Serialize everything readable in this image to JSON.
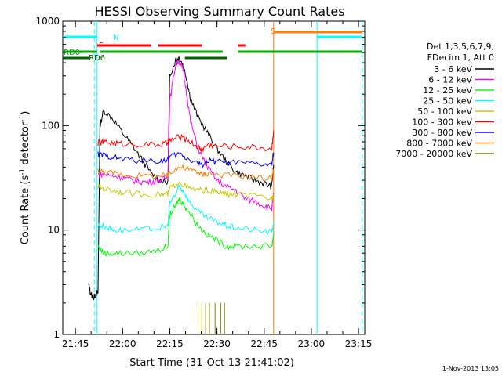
{
  "chart_data": {
    "type": "line",
    "title": "HESSI Observing Summary Count Rates",
    "xlabel": "Start Time (31-Oct-13 21:41:02)",
    "ylabel_main": "Count Rate (s",
    "ylabel_sup1": "-1",
    "ylabel_mid": " detector",
    "ylabel_sup2": "-1",
    "ylabel_end": ")",
    "yscale": "log",
    "ylim": [
      1,
      1000
    ],
    "xlim": [
      21.683,
      23.283
    ],
    "xticks": [
      {
        "value": 21.75,
        "label": "21:45"
      },
      {
        "value": 22.0,
        "label": "22:00"
      },
      {
        "value": 22.25,
        "label": "22:15"
      },
      {
        "value": 22.5,
        "label": "22:30"
      },
      {
        "value": 22.75,
        "label": "22:45"
      },
      {
        "value": 23.0,
        "label": "23:00"
      },
      {
        "value": 23.25,
        "label": "23:15"
      }
    ],
    "yticks": [
      {
        "value": 1,
        "label": "1"
      },
      {
        "value": 10,
        "label": "10"
      },
      {
        "value": 100,
        "label": "100"
      },
      {
        "value": 1000,
        "label": "1000"
      }
    ],
    "legend_header": [
      "Det 1,3,5,6,7,9,",
      "FDecim 1, Att 0"
    ],
    "legend_position": "right",
    "series": [
      {
        "name": "3 - 6 keV",
        "color": "#000000",
        "x": [
          21.82,
          21.83,
          21.845,
          21.86,
          21.87,
          21.88,
          21.9,
          21.95,
          22.0,
          22.05,
          22.1,
          22.15,
          22.2,
          22.24,
          22.25,
          22.28,
          22.3,
          22.32,
          22.34,
          22.36,
          22.4,
          22.45,
          22.5,
          22.55,
          22.6,
          22.65,
          22.7,
          22.75,
          22.79,
          22.8
        ],
        "y": [
          3,
          2.5,
          2.2,
          2.5,
          2.5,
          100,
          140,
          115,
          85,
          65,
          48,
          35,
          30,
          28,
          300,
          420,
          450,
          380,
          280,
          180,
          120,
          85,
          60,
          45,
          36,
          33,
          30,
          28,
          26,
          42
        ]
      },
      {
        "name": "6 - 12 keV",
        "color": "#ff00ff",
        "x": [
          21.87,
          21.9,
          21.95,
          22.0,
          22.05,
          22.1,
          22.15,
          22.2,
          22.24,
          22.25,
          22.28,
          22.3,
          22.32,
          22.34,
          22.36,
          22.4,
          22.45,
          22.5,
          22.55,
          22.6,
          22.65,
          22.7,
          22.75,
          22.79,
          22.8
        ],
        "y": [
          34,
          34,
          33,
          32,
          30,
          29,
          29,
          30,
          32,
          170,
          380,
          420,
          340,
          200,
          110,
          60,
          40,
          30,
          26,
          24,
          20,
          19,
          17,
          16,
          22
        ]
      },
      {
        "name": "12 - 25 keV",
        "color": "#00ff00",
        "x": [
          21.87,
          21.9,
          21.95,
          22.0,
          22.1,
          22.2,
          22.24,
          22.25,
          22.28,
          22.3,
          22.32,
          22.35,
          22.4,
          22.45,
          22.5,
          22.55,
          22.6,
          22.7,
          22.79,
          22.8
        ],
        "y": [
          7,
          6,
          6,
          6,
          6,
          6.5,
          7,
          14,
          17,
          20,
          18,
          15,
          11,
          9,
          8,
          7,
          7,
          7,
          7,
          9
        ]
      },
      {
        "name": "25 - 50 keV",
        "color": "#00ffff",
        "x": [
          21.87,
          21.9,
          21.95,
          22.0,
          22.1,
          22.2,
          22.24,
          22.25,
          22.28,
          22.3,
          22.32,
          22.35,
          22.4,
          22.45,
          22.5,
          22.55,
          22.6,
          22.7,
          22.79,
          22.8
        ],
        "y": [
          11,
          11,
          10,
          10,
          10,
          10.5,
          11,
          18,
          22,
          26,
          24,
          19,
          15,
          13,
          12,
          11,
          10.5,
          10,
          9.5,
          12
        ]
      },
      {
        "name": "50 - 100 keV",
        "color": "#c8c800",
        "x": [
          21.87,
          21.9,
          21.95,
          22.0,
          22.1,
          22.2,
          22.24,
          22.25,
          22.3,
          22.35,
          22.4,
          22.45,
          22.5,
          22.55,
          22.6,
          22.7,
          22.79,
          22.8
        ],
        "y": [
          26,
          25,
          24,
          23,
          22,
          22,
          22,
          25,
          29,
          25,
          24,
          24,
          23,
          22,
          22,
          21,
          20,
          22
        ]
      },
      {
        "name": "100 - 300 keV",
        "color": "#ff0000",
        "x": [
          21.87,
          21.9,
          21.95,
          22.0,
          22.1,
          22.2,
          22.24,
          22.25,
          22.3,
          22.35,
          22.4,
          22.42,
          22.45,
          22.5,
          22.6,
          22.7,
          22.79,
          22.8
        ],
        "y": [
          68,
          70,
          68,
          67,
          66,
          66,
          68,
          72,
          78,
          72,
          62,
          58,
          66,
          64,
          63,
          62,
          60,
          90
        ]
      },
      {
        "name": "300 - 800 keV",
        "color": "#0000ff",
        "x": [
          21.87,
          21.9,
          21.95,
          22.0,
          22.1,
          22.2,
          22.24,
          22.25,
          22.3,
          22.35,
          22.4,
          22.42,
          22.45,
          22.5,
          22.6,
          22.7,
          22.79,
          22.8
        ],
        "y": [
          53,
          52,
          50,
          48,
          46,
          46,
          47,
          50,
          54,
          48,
          44,
          42,
          46,
          45,
          44,
          43,
          42,
          55
        ]
      },
      {
        "name": "800 - 7000 keV",
        "color": "#ff8000",
        "x": [
          21.87,
          21.9,
          21.95,
          22.0,
          22.1,
          22.2,
          22.24,
          22.25,
          22.3,
          22.35,
          22.4,
          22.42,
          22.45,
          22.5,
          22.6,
          22.7,
          22.79,
          22.8
        ],
        "y": [
          37,
          36,
          35,
          34,
          33,
          33,
          33,
          36,
          40,
          38,
          36,
          34,
          35,
          34,
          33,
          32,
          31,
          38
        ]
      },
      {
        "name": "7000 - 20000 keV",
        "color": "#808000",
        "x": [
          22.4,
          22.4,
          22.42,
          22.42,
          22.44,
          22.44,
          22.46,
          22.46,
          22.49,
          22.49,
          22.52,
          22.52,
          22.54,
          22.54
        ],
        "y": [
          1,
          2,
          1,
          2,
          1,
          2,
          1,
          2,
          1,
          2,
          1,
          2,
          1,
          2
        ]
      }
    ],
    "flags": [
      {
        "label": "N",
        "color": "#00ffff",
        "segments": [
          [
            21.683,
            21.865
          ],
          [
            23.03,
            23.27
          ]
        ]
      },
      {
        "label": "F",
        "color": "#ff0000",
        "segments": [
          [
            21.865,
            22.15
          ],
          [
            22.19,
            22.42
          ],
          [
            22.61,
            22.65
          ]
        ]
      },
      {
        "label": "RD0",
        "color": "#00aa00",
        "segments": [
          [
            21.683,
            21.865
          ],
          [
            21.88,
            22.53
          ],
          [
            22.61,
            23.27
          ]
        ]
      },
      {
        "label": "RD6",
        "color": "#006600",
        "segments": [
          [
            21.683,
            21.83
          ],
          [
            22.33,
            22.555
          ]
        ]
      },
      {
        "label": "S",
        "color": "#ff8000",
        "segments": [
          [
            22.8,
            23.27
          ]
        ]
      }
    ],
    "vlines": [
      {
        "x": 21.85,
        "color": "#00ffff",
        "style": "dashed"
      },
      {
        "x": 21.865,
        "color": "#00ffff",
        "style": "solid"
      },
      {
        "x": 22.8,
        "color": "#ff8000",
        "style": "solid"
      },
      {
        "x": 23.03,
        "color": "#00ffff",
        "style": "solid"
      },
      {
        "x": 23.27,
        "color": "#00ffff",
        "style": "dashed"
      }
    ]
  },
  "footer": {
    "timestamp": "1-Nov-2013 13:05"
  }
}
